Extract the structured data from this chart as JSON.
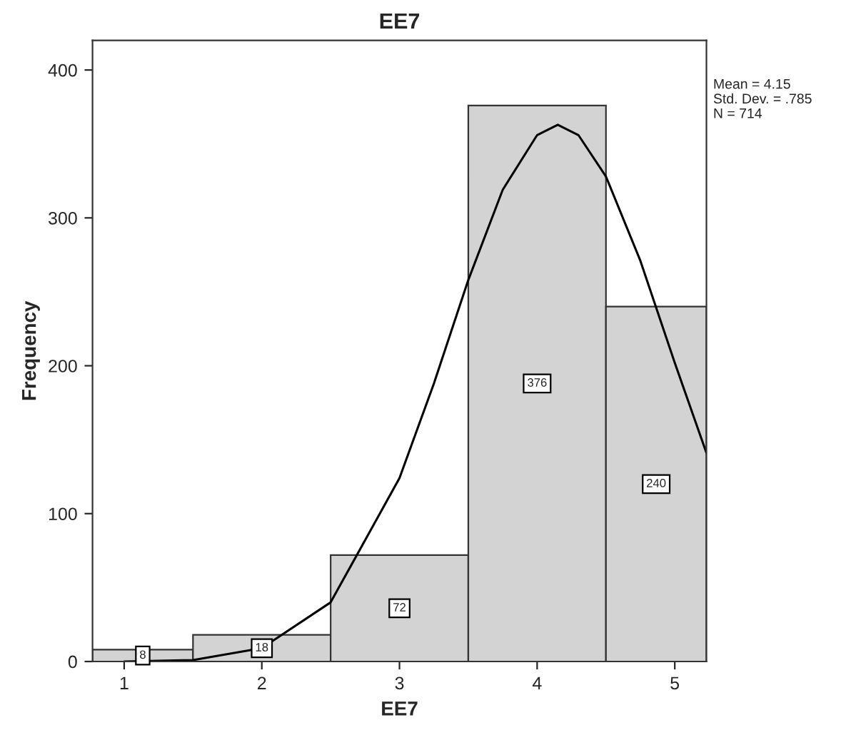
{
  "chart_data": {
    "type": "histogram",
    "title": "EE7",
    "xlabel": "EE7",
    "ylabel": "Frequency",
    "bins": [
      0.77,
      1.5,
      2.5,
      3.5,
      4.5,
      5.23
    ],
    "values": [
      8,
      18,
      72,
      376,
      240
    ],
    "color": "#d3d3d3",
    "value_labels": [
      "8",
      "18",
      "72",
      "376",
      "240"
    ],
    "series": [
      {
        "type": "line",
        "color": "#000000",
        "x": [
          1.0,
          1.5,
          2.0,
          2.5,
          3.0,
          3.25,
          3.5,
          3.75,
          4.0,
          4.15,
          4.3,
          4.5,
          4.75,
          5.0,
          5.23
        ],
        "values": [
          0,
          1,
          9,
          40,
          124,
          188,
          258,
          319,
          356,
          363,
          356,
          328,
          271,
          202,
          141
        ]
      }
    ],
    "xlim": [
      0.77,
      5.23
    ],
    "xticks": [
      1,
      2,
      3,
      4,
      5
    ],
    "ylim": [
      0,
      420
    ],
    "yticks": [
      0,
      100,
      200,
      300,
      400
    ],
    "grid": false,
    "legend": false,
    "annotations": [
      "Mean = 4.15",
      "Std. Dev. = .785",
      "N = 714"
    ]
  }
}
